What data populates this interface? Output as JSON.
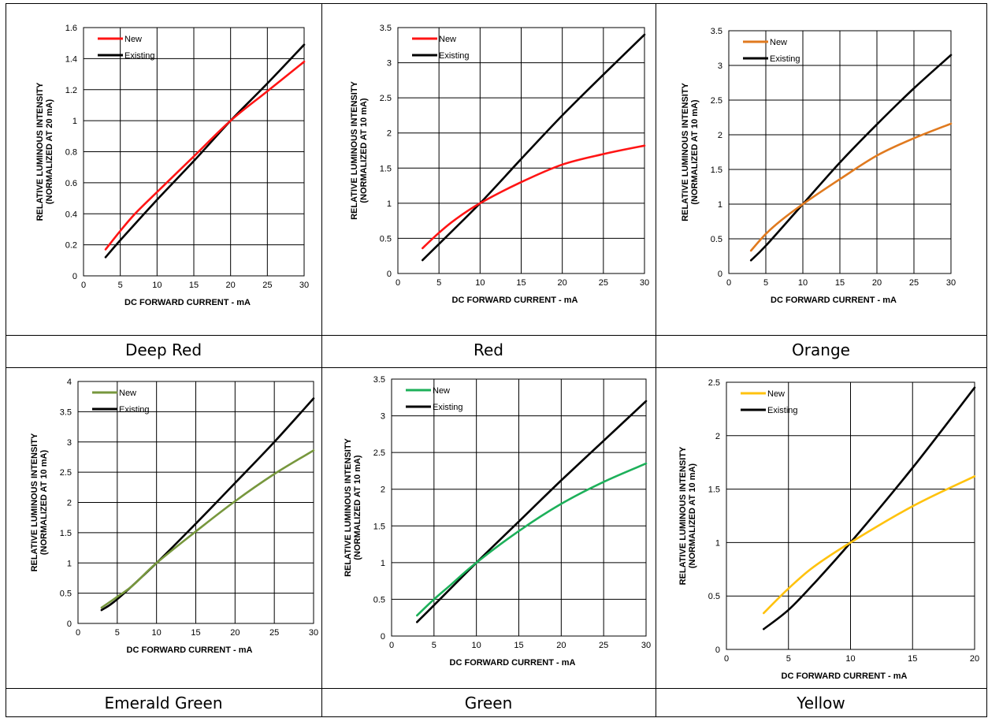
{
  "colors": {
    "existing": "#000000",
    "deep_red": "#ff1414",
    "red": "#ff1414",
    "orange": "#e07a1f",
    "emerald_green": "#77973d",
    "green": "#1db05a",
    "yellow": "#ffc20e"
  },
  "captions": [
    "Deep Red",
    "Red",
    "Orange",
    "Emerald Green",
    "Green",
    "Yellow"
  ],
  "chart_data": [
    {
      "type": "line",
      "title": "",
      "xlabel": "DC FORWARD CURRENT - mA",
      "ylabel": [
        "RELATIVE LUMINOUS INTENSITY",
        "(NORMALIZED AT 20 mA)"
      ],
      "xlim": [
        0,
        30
      ],
      "ylim": [
        0,
        1.6
      ],
      "xticks": [
        "0",
        "5",
        "10",
        "15",
        "20",
        "25",
        "30"
      ],
      "yticks": [
        "0",
        "0.2",
        "0.4",
        "0.6",
        "0.8",
        "1",
        "1.2",
        "1.4",
        "1.6"
      ],
      "grid": true,
      "legend": "top-left",
      "series": [
        {
          "name": "New",
          "color": "#ff1414",
          "x": [
            3,
            5,
            7,
            10,
            15,
            20,
            25,
            30
          ],
          "y": [
            0.17,
            0.29,
            0.4,
            0.54,
            0.77,
            1.0,
            1.19,
            1.38
          ]
        },
        {
          "name": "Existing",
          "color": "#000000",
          "x": [
            3,
            5,
            10,
            15,
            20,
            25,
            30
          ],
          "y": [
            0.12,
            0.23,
            0.49,
            0.74,
            1.0,
            1.24,
            1.49
          ]
        }
      ]
    },
    {
      "type": "line",
      "title": "",
      "xlabel": "DC FORWARD CURRENT - mA",
      "ylabel": [
        "RELATIVE LUMINOUS INTENSITY",
        "(NORMALIZED AT 10 mA)"
      ],
      "xlim": [
        0,
        30
      ],
      "ylim": [
        0,
        3.5
      ],
      "xticks": [
        "0",
        "5",
        "10",
        "15",
        "20",
        "25",
        "30"
      ],
      "yticks": [
        "0",
        "0.5",
        "1",
        "1.5",
        "2",
        "2.5",
        "3",
        "3.5"
      ],
      "grid": true,
      "legend": "top-left",
      "series": [
        {
          "name": "New",
          "color": "#ff1414",
          "x": [
            3,
            5,
            7,
            10,
            15,
            20,
            25,
            30
          ],
          "y": [
            0.36,
            0.58,
            0.77,
            1.0,
            1.3,
            1.55,
            1.7,
            1.82
          ]
        },
        {
          "name": "Existing",
          "color": "#000000",
          "x": [
            3,
            5,
            10,
            15,
            20,
            25,
            30
          ],
          "y": [
            0.19,
            0.42,
            1.0,
            1.63,
            2.25,
            2.83,
            3.4
          ]
        }
      ]
    },
    {
      "type": "line",
      "title": "",
      "xlabel": "DC FORWARD CURRENT - mA",
      "ylabel": [
        "RELATIVE LUMINOUS INTENSITY",
        "(NORMALIZED AT 10 mA)"
      ],
      "xlim": [
        0,
        30
      ],
      "ylim": [
        0,
        3.5
      ],
      "xticks": [
        "0",
        "5",
        "10",
        "15",
        "20",
        "25",
        "30"
      ],
      "yticks": [
        "0",
        "0.5",
        "1",
        "1.5",
        "2",
        "2.5",
        "3",
        "3.5"
      ],
      "grid": true,
      "legend": "top-left",
      "series": [
        {
          "name": "New",
          "color": "#e07a1f",
          "x": [
            3,
            5,
            7,
            10,
            15,
            20,
            25,
            30
          ],
          "y": [
            0.33,
            0.57,
            0.76,
            1.0,
            1.36,
            1.7,
            1.95,
            2.16
          ]
        },
        {
          "name": "Existing",
          "color": "#000000",
          "x": [
            3,
            5,
            10,
            15,
            20,
            25,
            30
          ],
          "y": [
            0.19,
            0.4,
            1.0,
            1.6,
            2.15,
            2.67,
            3.15
          ]
        }
      ]
    },
    {
      "type": "line",
      "title": "",
      "xlabel": "DC FORWARD CURRENT - mA",
      "ylabel": [
        "RELATIVE LUMINOUS INTENSITY",
        "(NORMALIZED AT 10 mA)"
      ],
      "xlim": [
        0,
        30
      ],
      "ylim": [
        0,
        4
      ],
      "xticks": [
        "0",
        "5",
        "10",
        "15",
        "20",
        "25",
        "30"
      ],
      "yticks": [
        "0",
        "0.5",
        "1",
        "1.5",
        "2",
        "2.5",
        "3",
        "3.5",
        "4"
      ],
      "grid": true,
      "legend": "top-left",
      "series": [
        {
          "name": "New",
          "color": "#77973d",
          "x": [
            3,
            5,
            7,
            10,
            15,
            20,
            25,
            30
          ],
          "y": [
            0.26,
            0.44,
            0.63,
            1.0,
            1.52,
            2.02,
            2.47,
            2.86
          ]
        },
        {
          "name": "Existing",
          "color": "#000000",
          "x": [
            3,
            5,
            10,
            15,
            20,
            25,
            30
          ],
          "y": [
            0.22,
            0.4,
            1.0,
            1.65,
            2.32,
            3.0,
            3.72
          ]
        }
      ]
    },
    {
      "type": "line",
      "title": "",
      "xlabel": "DC FORWARD CURRENT - mA",
      "ylabel": [
        "RELATIVE LUMINOUS INTENSITY",
        "(NORMALIZED AT 10 mA)"
      ],
      "xlim": [
        0,
        30
      ],
      "ylim": [
        0,
        3.5
      ],
      "xticks": [
        "0",
        "5",
        "10",
        "15",
        "20",
        "25",
        "30"
      ],
      "yticks": [
        "0",
        "0.5",
        "1",
        "1.5",
        "2",
        "2.5",
        "3",
        "3.5"
      ],
      "grid": true,
      "legend": "top-left",
      "series": [
        {
          "name": "New",
          "color": "#1db05a",
          "x": [
            3,
            5,
            7,
            10,
            15,
            20,
            25,
            30
          ],
          "y": [
            0.28,
            0.5,
            0.7,
            1.0,
            1.43,
            1.8,
            2.1,
            2.35
          ]
        },
        {
          "name": "Existing",
          "color": "#000000",
          "x": [
            3,
            5,
            10,
            15,
            20,
            25,
            30
          ],
          "y": [
            0.19,
            0.42,
            1.0,
            1.56,
            2.12,
            2.66,
            3.2
          ]
        }
      ]
    },
    {
      "type": "line",
      "title": "",
      "xlabel": "DC FORWARD CURRENT - mA",
      "ylabel": [
        "RELATIVE LUMINOUS INTENSITY",
        "(NORMALIZED AT 10 mA)"
      ],
      "xlim": [
        0,
        20
      ],
      "ylim": [
        0,
        2.5
      ],
      "xticks": [
        "0",
        "5",
        "10",
        "15",
        "20"
      ],
      "yticks": [
        "0",
        "0.5",
        "1",
        "1.5",
        "2",
        "2.5"
      ],
      "grid": true,
      "legend": "top-left",
      "series": [
        {
          "name": "New",
          "color": "#ffc20e",
          "x": [
            3,
            5,
            7,
            10,
            15,
            20
          ],
          "y": [
            0.34,
            0.57,
            0.77,
            1.0,
            1.34,
            1.62
          ]
        },
        {
          "name": "Existing",
          "color": "#000000",
          "x": [
            3,
            5,
            7,
            10,
            15,
            20
          ],
          "y": [
            0.19,
            0.37,
            0.61,
            1.0,
            1.7,
            2.45
          ]
        }
      ]
    }
  ]
}
